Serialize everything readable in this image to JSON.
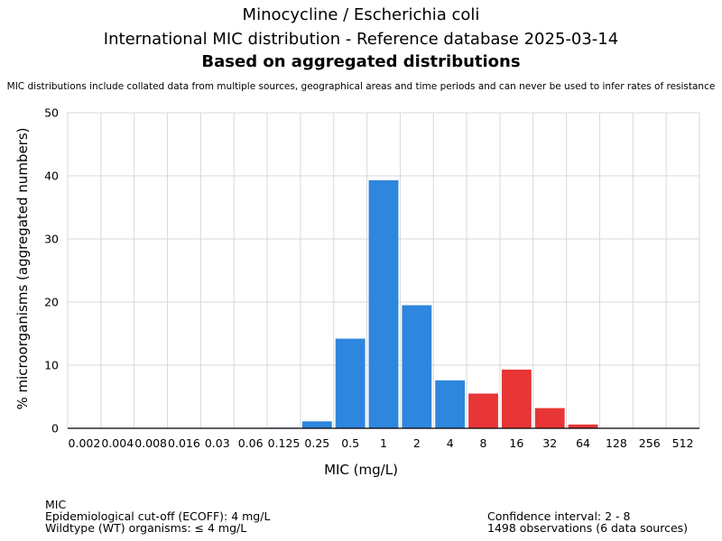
{
  "header": {
    "title": "Minocycline / Escherichia coli",
    "subtitle": "International MIC distribution - Reference database 2025-03-14",
    "bold_subtitle": "Based on aggregated distributions",
    "note": "MIC distributions include collated data from multiple sources, geographical areas and time periods and can never be used to infer rates of resistance"
  },
  "footer": {
    "left_line1": "MIC",
    "left_line2": "Epidemiological cut-off (ECOFF): 4 mg/L",
    "left_line3": "Wildtype (WT) organisms: ≤ 4 mg/L",
    "right_line1": "Confidence interval: 2 - 8",
    "right_line2": "1498 observations (6 data sources)"
  },
  "chart_data": {
    "type": "bar",
    "xlabel": "MIC (mg/L)",
    "ylabel": "% microorganisms (aggregated numbers)",
    "ylim": [
      0,
      50
    ],
    "yticks": [
      0,
      10,
      20,
      30,
      40,
      50
    ],
    "grid": true,
    "categories": [
      "0.002",
      "0.004",
      "0.008",
      "0.016",
      "0.03",
      "0.06",
      "0.125",
      "0.25",
      "0.5",
      "1",
      "2",
      "4",
      "8",
      "16",
      "32",
      "64",
      "128",
      "256",
      "512"
    ],
    "values": [
      0,
      0,
      0,
      0,
      0,
      0,
      0.1,
      1.1,
      14.2,
      39.3,
      19.5,
      7.6,
      5.5,
      9.3,
      3.2,
      0.6,
      0,
      0,
      0
    ],
    "colors": {
      "wildtype": "#2e86de",
      "non_wildtype": "#e83535",
      "grid": "#d9d9d9",
      "axis": "#000000"
    },
    "ecoff_index": 11
  }
}
